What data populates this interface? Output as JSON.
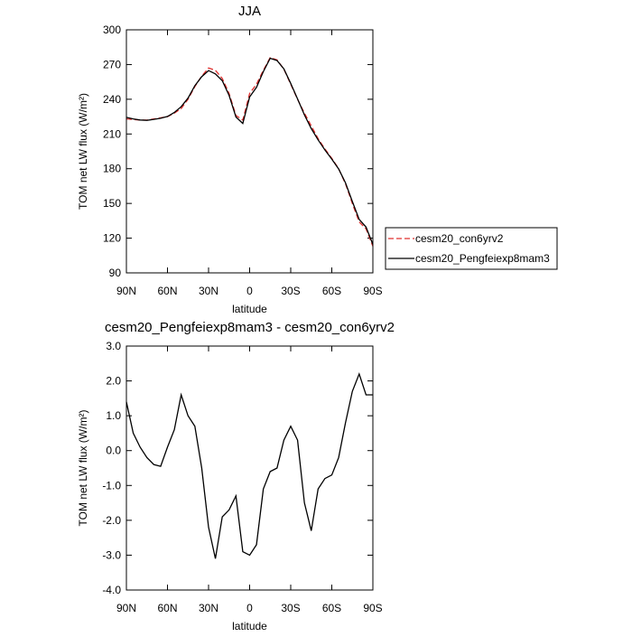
{
  "chart_data": [
    {
      "type": "line",
      "title": "JJA",
      "xlabel": "latitude",
      "ylabel": "TOM net LW flux (W/m²)",
      "x": [
        90,
        85,
        80,
        75,
        70,
        65,
        60,
        55,
        50,
        45,
        40,
        35,
        30,
        25,
        20,
        15,
        10,
        5,
        0,
        -5,
        -10,
        -15,
        -20,
        -25,
        -30,
        -35,
        -40,
        -45,
        -50,
        -55,
        -60,
        -65,
        -70,
        -75,
        -80,
        -85,
        -90
      ],
      "xlim": [
        90,
        -90
      ],
      "xticks": [
        {
          "value": 90,
          "label": "90N"
        },
        {
          "value": 60,
          "label": "60N"
        },
        {
          "value": 30,
          "label": "30N"
        },
        0,
        {
          "value": -30,
          "label": "30S"
        },
        {
          "value": -60,
          "label": "60S"
        },
        {
          "value": -90,
          "label": "90S"
        }
      ],
      "ylim": [
        90,
        300
      ],
      "yticks": [
        90,
        120,
        150,
        180,
        210,
        240,
        270,
        300
      ],
      "legend": "right",
      "series": [
        {
          "name": "cesm20_con6yrv2",
          "color": "#e0302f",
          "dashed": true,
          "values": [
            223,
            222.5,
            222,
            222,
            223,
            224,
            225,
            228,
            232,
            240,
            251,
            260,
            267,
            265,
            258,
            245,
            226,
            222,
            245,
            253,
            265,
            276,
            274,
            266,
            253,
            240,
            228,
            217,
            206,
            197,
            189,
            180,
            167,
            150,
            134,
            128,
            113
          ]
        },
        {
          "name": "cesm20_Pengfeiexp8mam3",
          "color": "#000000",
          "dashed": false,
          "values": [
            224.4,
            223,
            222.1,
            221.8,
            222.6,
            223.6,
            225.1,
            228.6,
            233.6,
            241,
            251.7,
            259.5,
            264.8,
            261.9,
            256.1,
            243.3,
            224.7,
            219.1,
            242,
            250.3,
            263.9,
            275.4,
            273.5,
            266.3,
            253.7,
            240.3,
            226.5,
            214.7,
            204.9,
            196.2,
            188.3,
            179.8,
            167.8,
            151.7,
            136.2,
            129.6,
            114.6
          ]
        }
      ]
    },
    {
      "type": "line",
      "title": "cesm20_Pengfeiexp8mam3 - cesm20_con6yrv2",
      "xlabel": "latitude",
      "ylabel": "TOM net LW flux (W/m²)",
      "x": [
        90,
        85,
        80,
        75,
        70,
        65,
        60,
        55,
        50,
        45,
        40,
        35,
        30,
        25,
        20,
        15,
        10,
        5,
        0,
        -5,
        -10,
        -15,
        -20,
        -25,
        -30,
        -35,
        -40,
        -45,
        -50,
        -55,
        -60,
        -65,
        -70,
        -75,
        -80,
        -85,
        -90
      ],
      "xlim": [
        90,
        -90
      ],
      "xticks": [
        {
          "value": 90,
          "label": "90N"
        },
        {
          "value": 60,
          "label": "60N"
        },
        {
          "value": 30,
          "label": "30N"
        },
        0,
        {
          "value": -30,
          "label": "30S"
        },
        {
          "value": -60,
          "label": "60S"
        },
        {
          "value": -90,
          "label": "90S"
        }
      ],
      "ylim": [
        -4,
        3
      ],
      "yticks": [
        {
          "value": -4,
          "label": "-4.0"
        },
        {
          "value": -3,
          "label": "-3.0"
        },
        {
          "value": -2,
          "label": "-2.0"
        },
        {
          "value": -1,
          "label": "-1.0"
        },
        {
          "value": 0,
          "label": "0.0"
        },
        {
          "value": 1,
          "label": "1.0"
        },
        {
          "value": 2,
          "label": "2.0"
        },
        {
          "value": 3,
          "label": "3.0"
        }
      ],
      "series": [
        {
          "color": "#000000",
          "dashed": false,
          "values": [
            1.4,
            0.5,
            0.1,
            -0.2,
            -0.4,
            -0.45,
            0.1,
            0.6,
            1.6,
            1.0,
            0.7,
            -0.5,
            -2.2,
            -3.1,
            -1.9,
            -1.7,
            -1.3,
            -2.9,
            -3.0,
            -2.7,
            -1.1,
            -0.6,
            -0.5,
            0.3,
            0.7,
            0.3,
            -1.5,
            -2.3,
            -1.1,
            -0.8,
            -0.7,
            -0.2,
            0.8,
            1.7,
            2.2,
            1.6,
            1.6
          ]
        }
      ]
    }
  ]
}
